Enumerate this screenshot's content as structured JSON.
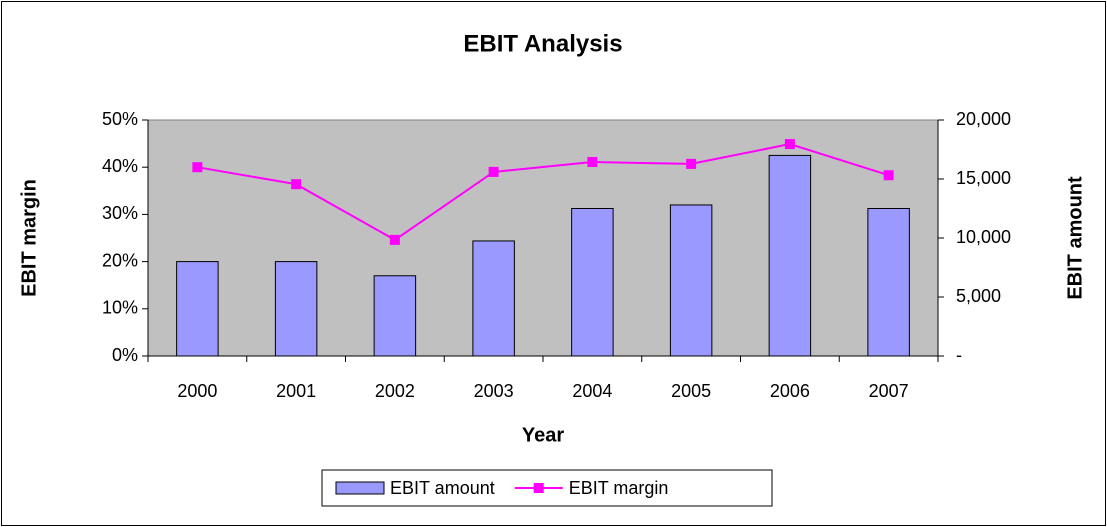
{
  "chart_data": {
    "type": "bar-line",
    "title": "EBIT Analysis",
    "x_label": "Year",
    "y_label": "EBIT margin",
    "y2_label": "EBIT amount",
    "categories": [
      "2000",
      "2001",
      "2002",
      "2003",
      "2004",
      "2005",
      "2006",
      "2007"
    ],
    "series": [
      {
        "name": "EBIT amount",
        "type": "bar",
        "axis": "y2",
        "color": "#9999ff",
        "values": [
          8000,
          8000,
          6800,
          9750,
          12500,
          12800,
          17000,
          12500
        ]
      },
      {
        "name": "EBIT margin",
        "type": "line",
        "axis": "y",
        "color": "#ff00ff",
        "values": [
          40.0,
          36.4,
          24.6,
          39.0,
          41.1,
          40.7,
          44.9,
          38.3
        ]
      }
    ],
    "ylim": [
      0,
      50
    ],
    "yticks": [
      {
        "value": 0,
        "label": "0%"
      },
      {
        "value": 10,
        "label": "10%"
      },
      {
        "value": 20,
        "label": "20%"
      },
      {
        "value": 30,
        "label": "30%"
      },
      {
        "value": 40,
        "label": "40%"
      },
      {
        "value": 50,
        "label": "50%"
      }
    ],
    "y2lim": [
      0,
      20000
    ],
    "y2ticks": [
      {
        "value": 0,
        "label": "-"
      },
      {
        "value": 5000,
        "label": "5,000"
      },
      {
        "value": 10000,
        "label": "10,000"
      },
      {
        "value": 15000,
        "label": "15,000"
      },
      {
        "value": 20000,
        "label": "20,000"
      }
    ],
    "plot_background": "#c0c0c0",
    "grid": false,
    "legend": "bottom"
  }
}
